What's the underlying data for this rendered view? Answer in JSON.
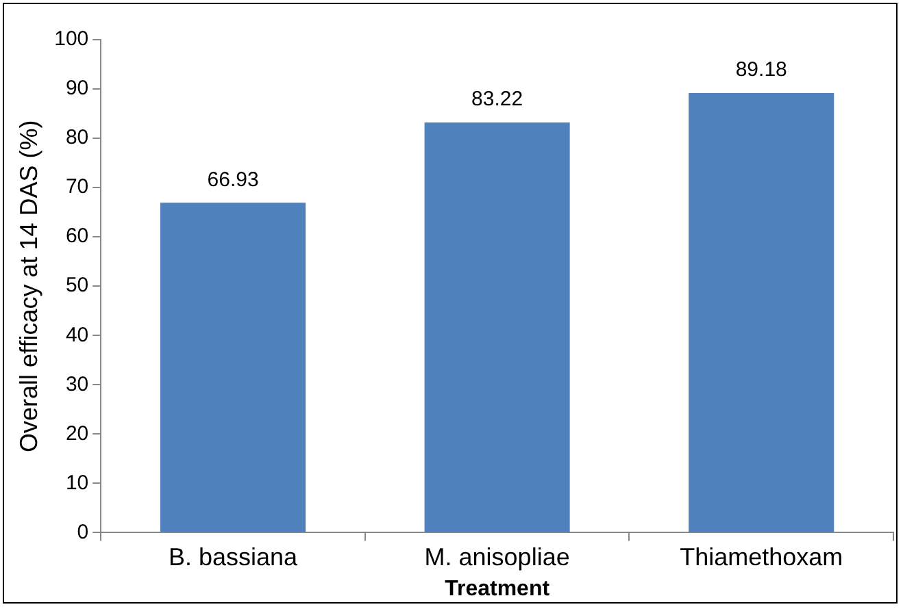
{
  "chart_data": {
    "type": "bar",
    "xlabel": "Treatment",
    "ylabel": "Overall efficacy at 14 DAS (%)",
    "categories": [
      "B. bassiana",
      "M. anisopliae",
      "Thiamethoxam"
    ],
    "values": [
      66.93,
      83.22,
      89.18
    ],
    "color": "#4f81bd",
    "ylim": [
      0,
      100
    ],
    "yticks": [
      0,
      10,
      20,
      30,
      40,
      50,
      60,
      70,
      80,
      90,
      100
    ],
    "grid": false,
    "legend": false,
    "data_labels": true
  }
}
